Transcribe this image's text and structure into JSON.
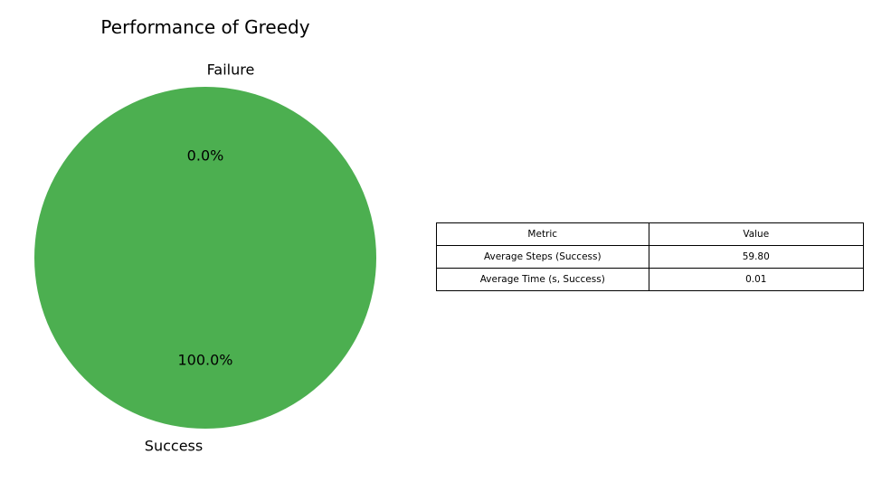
{
  "chart_data": {
    "type": "pie",
    "title": "Performance of Greedy",
    "slices": [
      {
        "label": "Failure",
        "value": 0.0,
        "pct_label": "0.0%",
        "color": "#e74c3c"
      },
      {
        "label": "Success",
        "value": 100.0,
        "pct_label": "100.0%",
        "color": "#4caf50"
      }
    ]
  },
  "table": {
    "headers": [
      "Metric",
      "Value"
    ],
    "rows": [
      [
        "Average Steps (Success)",
        "59.80"
      ],
      [
        "Average Time (s, Success)",
        "0.01"
      ]
    ]
  }
}
